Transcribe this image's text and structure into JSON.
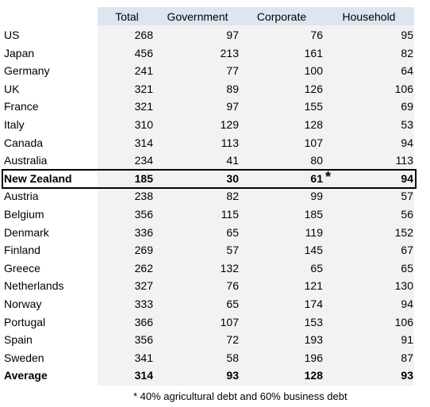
{
  "table": {
    "columns": [
      "Total",
      "Government",
      "Corporate",
      "Household"
    ],
    "rows": [
      {
        "label": "US",
        "values": [
          268,
          97,
          76,
          95
        ]
      },
      {
        "label": "Japan",
        "values": [
          456,
          213,
          161,
          82
        ]
      },
      {
        "label": "Germany",
        "values": [
          241,
          77,
          100,
          64
        ]
      },
      {
        "label": "UK",
        "values": [
          321,
          89,
          126,
          106
        ]
      },
      {
        "label": "France",
        "values": [
          321,
          97,
          155,
          69
        ]
      },
      {
        "label": "Italy",
        "values": [
          310,
          129,
          128,
          53
        ]
      },
      {
        "label": "Canada",
        "values": [
          314,
          113,
          107,
          94
        ]
      },
      {
        "label": "Australia",
        "values": [
          234,
          41,
          80,
          113
        ]
      },
      {
        "label": "New Zealand",
        "values": [
          185,
          30,
          61,
          94
        ],
        "marker": "*"
      },
      {
        "label": "Austria",
        "values": [
          238,
          82,
          99,
          57
        ]
      },
      {
        "label": "Belgium",
        "values": [
          356,
          115,
          185,
          56
        ]
      },
      {
        "label": "Denmark",
        "values": [
          336,
          65,
          119,
          152
        ]
      },
      {
        "label": "Finland",
        "values": [
          269,
          57,
          145,
          67
        ]
      },
      {
        "label": "Greece",
        "values": [
          262,
          132,
          65,
          65
        ]
      },
      {
        "label": "Netherlands",
        "values": [
          327,
          76,
          121,
          130
        ]
      },
      {
        "label": "Norway",
        "values": [
          333,
          65,
          174,
          94
        ]
      },
      {
        "label": "Portugal",
        "values": [
          366,
          107,
          153,
          106
        ]
      },
      {
        "label": "Spain",
        "values": [
          356,
          72,
          193,
          91
        ]
      },
      {
        "label": "Sweden",
        "values": [
          341,
          58,
          196,
          87
        ]
      }
    ],
    "average": {
      "label": "Average",
      "values": [
        314,
        93,
        128,
        93
      ]
    },
    "footnote": "* 40% agricultural debt and 60% business debt"
  }
}
